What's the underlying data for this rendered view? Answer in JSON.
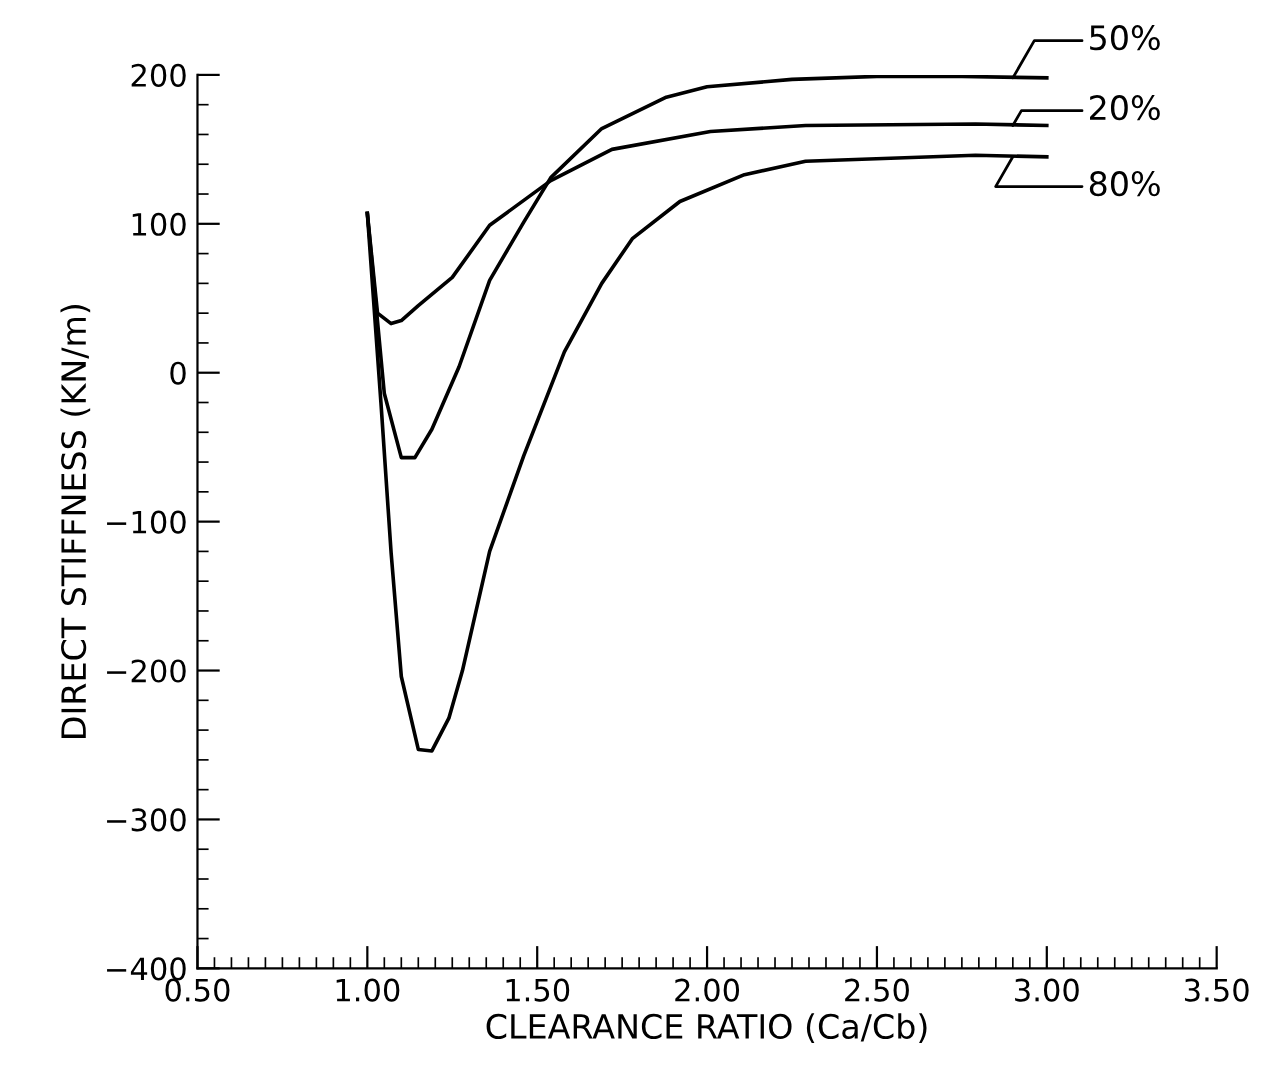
{
  "chart_data": {
    "type": "line",
    "xlabel": "CLEARANCE RATIO (Ca/Cb)",
    "ylabel": "DIRECT STIFFNESS (KN/m)",
    "xlim": [
      0.5,
      3.5
    ],
    "ylim": [
      -400,
      200
    ],
    "xticks": [
      {
        "value": 0.5,
        "label": "0.50"
      },
      {
        "value": 1.0,
        "label": "1.00"
      },
      {
        "value": 1.5,
        "label": "1.50"
      },
      {
        "value": 2.0,
        "label": "2.00"
      },
      {
        "value": 2.5,
        "label": "2.50"
      },
      {
        "value": 3.0,
        "label": "3.00"
      },
      {
        "value": 3.5,
        "label": "3.50"
      }
    ],
    "yticks": [
      -400,
      -300,
      -200,
      -100,
      0,
      100,
      200
    ],
    "grid": false,
    "legend": "right",
    "marker": "none",
    "line_style": "solid",
    "series": [
      {
        "name": "50%",
        "color": "#000000",
        "x": [
          1.0,
          1.05,
          1.1,
          1.14,
          1.19,
          1.27,
          1.36,
          1.46,
          1.54,
          1.69,
          1.88,
          2.0,
          2.25,
          2.5,
          2.75,
          3.0
        ],
        "values": [
          107,
          -14,
          -57,
          -57,
          -38,
          4,
          62,
          101,
          131,
          164,
          185,
          192,
          197,
          199,
          199,
          198
        ]
      },
      {
        "name": "20%",
        "color": "#000000",
        "x": [
          1.0,
          1.03,
          1.07,
          1.1,
          1.15,
          1.25,
          1.36,
          1.54,
          1.72,
          2.01,
          2.29,
          2.79,
          3.0
        ],
        "values": [
          107,
          40,
          33,
          35,
          45,
          64,
          99,
          129,
          150,
          162,
          166,
          167,
          166
        ]
      },
      {
        "name": "80%",
        "color": "#000000",
        "x": [
          1.0,
          1.04,
          1.07,
          1.1,
          1.15,
          1.19,
          1.24,
          1.28,
          1.36,
          1.46,
          1.58,
          1.69,
          1.78,
          1.92,
          2.11,
          2.29,
          2.79,
          3.0
        ],
        "values": [
          107,
          -20,
          -121,
          -204,
          -253,
          -254,
          -232,
          -200,
          -120,
          -56,
          14,
          60,
          90,
          115,
          133,
          142,
          146,
          145
        ]
      }
    ]
  }
}
